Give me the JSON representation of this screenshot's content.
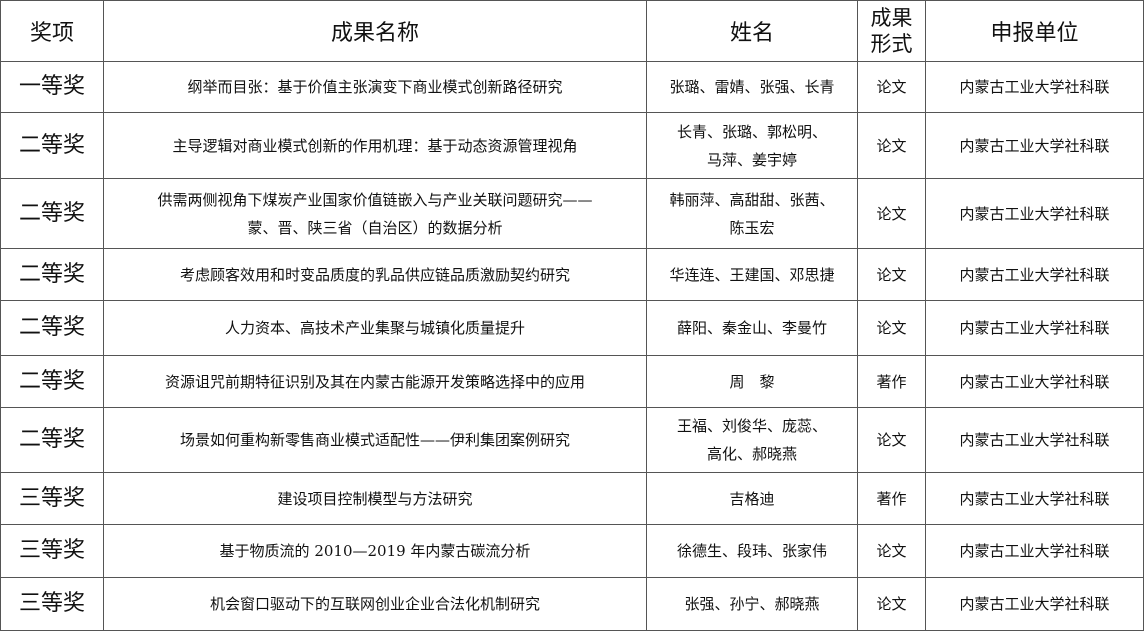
{
  "headers": {
    "award": "奖项",
    "title": "成果名称",
    "names": "姓名",
    "form_line1": "成果",
    "form_line2": "形式",
    "unit": "申报单位"
  },
  "rows": [
    {
      "award": "一等奖",
      "title": "纲举而目张：基于价值主张演变下商业模式创新路径研究",
      "names": "张璐、雷婧、张强、长青",
      "form": "论文",
      "unit": "内蒙古工业大学社科联"
    },
    {
      "award": "二等奖",
      "title": "主导逻辑对商业模式创新的作用机理：基于动态资源管理视角",
      "names": "长青、张璐、郭松明、马萍、姜宇婷",
      "form": "论文",
      "unit": "内蒙古工业大学社科联"
    },
    {
      "award": "二等奖",
      "title": "供需两侧视角下煤炭产业国家价值链嵌入与产业关联问题研究——蒙、晋、陕三省（自治区）的数据分析",
      "names": "韩丽萍、高甜甜、张茜、陈玉宏",
      "form": "论文",
      "unit": "内蒙古工业大学社科联"
    },
    {
      "award": "二等奖",
      "title": "考虑顾客效用和时变品质度的乳品供应链品质激励契约研究",
      "names": "华连连、王建国、邓思捷",
      "form": "论文",
      "unit": "内蒙古工业大学社科联"
    },
    {
      "award": "二等奖",
      "title": "人力资本、高技术产业集聚与城镇化质量提升",
      "names": "薛阳、秦金山、李曼竹",
      "form": "论文",
      "unit": "内蒙古工业大学社科联"
    },
    {
      "award": "二等奖",
      "title": "资源诅咒前期特征识别及其在内蒙古能源开发策略选择中的应用",
      "names": "周　黎",
      "form": "著作",
      "unit": "内蒙古工业大学社科联"
    },
    {
      "award": "二等奖",
      "title": "场景如何重构新零售商业模式适配性——伊利集团案例研究",
      "names": "王福、刘俊华、庞蕊、高化、郝晓燕",
      "form": "论文",
      "unit": "内蒙古工业大学社科联"
    },
    {
      "award": "三等奖",
      "title": "建设项目控制模型与方法研究",
      "names": "吉格迪",
      "form": "著作",
      "unit": "内蒙古工业大学社科联"
    },
    {
      "award": "三等奖",
      "title": "基于物质流的 2010—2019 年内蒙古碳流分析",
      "names": "徐德生、段玮、张家伟",
      "form": "论文",
      "unit": "内蒙古工业大学社科联"
    },
    {
      "award": "三等奖",
      "title": "机会窗口驱动下的互联网创业企业合法化机制研究",
      "names": "张强、孙宁、郝晓燕",
      "form": "论文",
      "unit": "内蒙古工业大学社科联"
    }
  ]
}
